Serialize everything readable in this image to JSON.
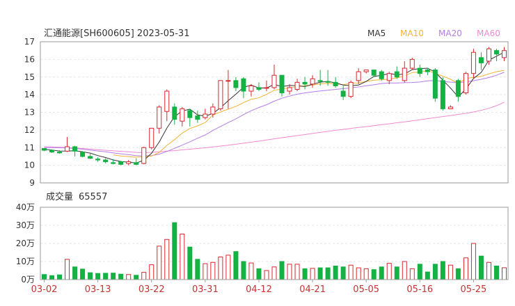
{
  "colors": {
    "up": "#d9262c",
    "down": "#14b143",
    "ma5": "#333333",
    "ma10": "#f5b335",
    "ma20": "#b57ce6",
    "ma60": "#f08ad0"
  },
  "chart_data": [
    {
      "type": "candlestick",
      "title": "汇通能源[SH600605] 2023-05-31",
      "legend": [
        "MA5",
        "MA10",
        "MA20",
        "MA60"
      ],
      "legend_position": "top-right",
      "ylim": [
        9,
        17
      ],
      "yticks": [
        "17",
        "16",
        "15",
        "14",
        "13",
        "12",
        "11",
        "10",
        "9"
      ],
      "grid": true,
      "x_tick_labels": [
        "03-02",
        "03-13",
        "03-22",
        "03-31",
        "04-12",
        "04-21",
        "05-05",
        "05-16",
        "05-25"
      ],
      "x_tick_indices": [
        0,
        7,
        14,
        21,
        28,
        35,
        42,
        49,
        56
      ],
      "ohlc": [
        [
          10.95,
          10.95,
          10.8,
          10.85
        ],
        [
          10.85,
          10.9,
          10.7,
          10.75
        ],
        [
          10.75,
          10.85,
          10.65,
          10.7
        ],
        [
          10.8,
          11.6,
          10.75,
          11.05
        ],
        [
          11.05,
          11.1,
          10.5,
          10.8
        ],
        [
          10.75,
          10.8,
          10.45,
          10.5
        ],
        [
          10.5,
          10.65,
          10.35,
          10.4
        ],
        [
          10.35,
          10.45,
          10.2,
          10.3
        ],
        [
          10.3,
          10.4,
          10.1,
          10.2
        ],
        [
          10.15,
          10.35,
          10.05,
          10.1
        ],
        [
          10.2,
          10.25,
          10.0,
          10.05
        ],
        [
          10.1,
          10.3,
          10.0,
          10.2
        ],
        [
          10.15,
          10.4,
          10.0,
          10.05
        ],
        [
          10.1,
          11.05,
          10.05,
          11.0
        ],
        [
          11.0,
          12.1,
          10.9,
          12.1
        ],
        [
          12.1,
          13.4,
          11.8,
          13.3
        ],
        [
          13.05,
          14.3,
          12.5,
          14.2
        ],
        [
          13.3,
          13.5,
          12.3,
          12.6
        ],
        [
          12.5,
          13.3,
          12.2,
          13.2
        ],
        [
          13.1,
          13.2,
          12.2,
          12.7
        ],
        [
          12.8,
          13.1,
          12.4,
          12.6
        ],
        [
          12.7,
          13.2,
          12.6,
          12.9
        ],
        [
          12.9,
          13.5,
          12.7,
          13.3
        ],
        [
          13.2,
          14.8,
          13.1,
          14.8
        ],
        [
          14.8,
          15.4,
          13.2,
          14.8
        ],
        [
          14.8,
          15.0,
          14.2,
          14.4
        ],
        [
          14.9,
          15.0,
          13.8,
          14.2
        ],
        [
          14.2,
          14.6,
          13.9,
          14.5
        ],
        [
          14.4,
          14.7,
          14.2,
          14.3
        ],
        [
          14.4,
          14.8,
          14.2,
          14.4
        ],
        [
          14.4,
          15.7,
          14.3,
          15.1
        ],
        [
          15.1,
          15.1,
          13.9,
          14.1
        ],
        [
          14.2,
          14.6,
          14.0,
          14.4
        ],
        [
          14.3,
          14.9,
          14.2,
          14.7
        ],
        [
          14.7,
          15.0,
          14.3,
          14.6
        ],
        [
          14.6,
          15.1,
          14.4,
          14.9
        ],
        [
          14.8,
          15.4,
          14.5,
          14.75
        ],
        [
          14.75,
          15.4,
          14.5,
          14.7
        ],
        [
          14.7,
          15.0,
          14.4,
          14.5
        ],
        [
          14.2,
          14.5,
          13.7,
          13.9
        ],
        [
          13.9,
          14.8,
          13.8,
          14.7
        ],
        [
          14.8,
          15.5,
          14.6,
          15.3
        ],
        [
          15.3,
          15.4,
          15.2,
          15.4
        ],
        [
          15.4,
          15.4,
          15.0,
          15.1
        ],
        [
          15.3,
          15.4,
          14.8,
          14.9
        ],
        [
          14.8,
          15.3,
          14.6,
          15.2
        ],
        [
          15.3,
          15.6,
          14.9,
          15.0
        ],
        [
          14.8,
          15.9,
          14.7,
          15.5
        ],
        [
          15.5,
          16.1,
          15.4,
          16.0
        ],
        [
          15.5,
          15.7,
          15.0,
          15.2
        ],
        [
          15.4,
          15.5,
          15.1,
          15.3
        ],
        [
          15.4,
          15.5,
          13.6,
          13.8
        ],
        [
          14.8,
          15.0,
          13.1,
          13.2
        ],
        [
          13.2,
          13.4,
          13.2,
          13.3
        ],
        [
          14.8,
          14.9,
          13.6,
          13.9
        ],
        [
          14.1,
          15.3,
          14.0,
          15.2
        ],
        [
          15.2,
          16.6,
          14.9,
          16.4
        ],
        [
          16.1,
          16.4,
          15.4,
          15.8
        ],
        [
          15.9,
          16.7,
          15.7,
          16.6
        ],
        [
          16.5,
          16.6,
          15.9,
          16.3
        ],
        [
          16.1,
          16.7,
          15.9,
          16.5
        ]
      ],
      "ma5": [
        10.9,
        10.86,
        10.81,
        10.8,
        10.83,
        10.76,
        10.69,
        10.55,
        10.44,
        10.3,
        10.21,
        10.17,
        10.13,
        10.28,
        10.68,
        11.32,
        12.11,
        12.76,
        13.07,
        13.18,
        12.86,
        12.78,
        12.94,
        13.26,
        13.66,
        14.03,
        14.42,
        14.54,
        14.38,
        14.38,
        14.58,
        14.46,
        14.52,
        14.51,
        14.46,
        14.59,
        14.71,
        14.75,
        14.67,
        14.55,
        14.51,
        14.55,
        14.75,
        15.03,
        15.1,
        15.2,
        15.13,
        15.17,
        15.42,
        15.48,
        15.5,
        15.28,
        14.82,
        14.37,
        13.87,
        14.32,
        14.92,
        15.26,
        15.96,
        16.18,
        16.4
      ],
      "ma10": [
        null,
        null,
        null,
        null,
        null,
        null,
        null,
        null,
        null,
        10.59,
        10.53,
        10.49,
        10.46,
        10.49,
        10.52,
        10.73,
        11.13,
        11.45,
        11.82,
        12.08,
        12.23,
        12.42,
        12.85,
        13.02,
        13.18,
        13.33,
        13.55,
        13.74,
        13.82,
        14.02,
        14.25,
        14.32,
        14.39,
        14.45,
        14.51,
        14.55,
        14.61,
        14.64,
        14.61,
        14.57,
        14.64,
        14.67,
        14.75,
        14.82,
        14.84,
        14.88,
        14.95,
        15.06,
        15.26,
        15.27,
        15.37,
        15.21,
        15.05,
        14.87,
        14.64,
        14.91,
        14.98,
        15.04,
        15.18,
        15.3,
        15.38
      ],
      "ma20": [
        11.0,
        11.0,
        10.99,
        10.98,
        10.95,
        10.91,
        10.86,
        10.81,
        10.76,
        10.7,
        10.65,
        10.6,
        10.55,
        10.53,
        10.55,
        10.63,
        10.78,
        10.96,
        11.14,
        11.33,
        11.53,
        11.72,
        11.97,
        12.2,
        12.42,
        12.63,
        12.87,
        13.09,
        13.27,
        13.43,
        13.63,
        13.8,
        13.92,
        14.03,
        14.1,
        14.16,
        14.21,
        14.25,
        14.3,
        14.34,
        14.39,
        14.44,
        14.5,
        14.56,
        14.63,
        14.66,
        14.66,
        14.68,
        14.69,
        14.72,
        14.78,
        14.8,
        14.75,
        14.71,
        14.69,
        14.73,
        14.79,
        14.87,
        14.97,
        15.1,
        15.27
      ],
      "ma60": [
        11.05,
        11.04,
        11.02,
        11.0,
        10.98,
        10.95,
        10.92,
        10.88,
        10.85,
        10.82,
        10.79,
        10.76,
        10.73,
        10.72,
        10.73,
        10.76,
        10.8,
        10.83,
        10.87,
        10.91,
        10.95,
        10.99,
        11.04,
        11.09,
        11.14,
        11.19,
        11.25,
        11.31,
        11.37,
        11.43,
        11.5,
        11.56,
        11.62,
        11.68,
        11.74,
        11.8,
        11.86,
        11.92,
        11.98,
        12.03,
        12.09,
        12.14,
        12.19,
        12.24,
        12.3,
        12.35,
        12.41,
        12.46,
        12.52,
        12.58,
        12.64,
        12.7,
        12.76,
        12.82,
        12.88,
        12.94,
        13.02,
        13.11,
        13.23,
        13.38,
        13.57
      ]
    },
    {
      "type": "bar",
      "title": "成交量",
      "title_value": "65557",
      "ylim": [
        0,
        400000
      ],
      "yticks": [
        "40万",
        "30万",
        "20万",
        "10万",
        "0万"
      ],
      "grid": true,
      "volume": [
        28000,
        22000,
        26000,
        112000,
        70000,
        58000,
        38000,
        34000,
        35000,
        36000,
        30000,
        28000,
        24000,
        40000,
        82000,
        185000,
        222000,
        315000,
        252000,
        180000,
        112000,
        88000,
        95000,
        125000,
        135000,
        155000,
        100000,
        92000,
        60000,
        50000,
        70000,
        100000,
        85000,
        85000,
        60000,
        62000,
        65000,
        65000,
        75000,
        70000,
        80000,
        65000,
        60000,
        55000,
        70000,
        90000,
        70000,
        100000,
        60000,
        85000,
        42000,
        85000,
        100000,
        80000,
        60000,
        120000,
        200000,
        130000,
        95000,
        75000,
        65557
      ]
    }
  ]
}
